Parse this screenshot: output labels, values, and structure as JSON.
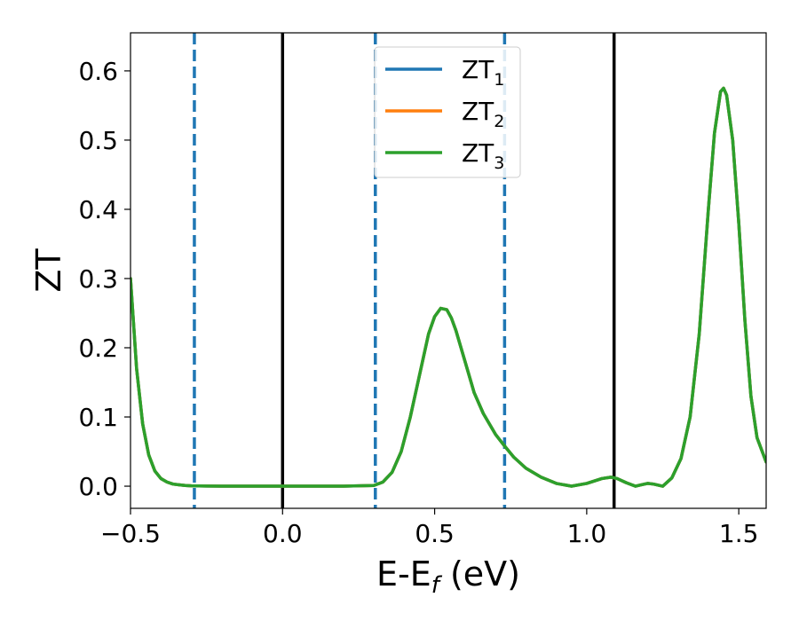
{
  "chart_data": {
    "type": "line",
    "title": "",
    "xlabel": "E-E",
    "xlabel_sub": "f",
    "xlabel_unit": " (eV)",
    "ylabel": "ZT",
    "xlim": [
      -0.5,
      1.59
    ],
    "ylim": [
      -0.032,
      0.655
    ],
    "x_ticks": [
      -0.5,
      0.0,
      0.5,
      1.0,
      1.5
    ],
    "x_tick_labels": [
      "−0.5",
      "0.0",
      "0.5",
      "1.0",
      "1.5"
    ],
    "y_ticks": [
      0.0,
      0.1,
      0.2,
      0.3,
      0.4,
      0.5,
      0.6
    ],
    "y_tick_labels": [
      "0.0",
      "0.1",
      "0.2",
      "0.3",
      "0.4",
      "0.5",
      "0.6"
    ],
    "grid": false,
    "legend_position": "top-center",
    "vlines": [
      {
        "x": -0.29,
        "style": "dashed",
        "color": "#1f77b4"
      },
      {
        "x": 0.0,
        "style": "solid",
        "color": "#000000"
      },
      {
        "x": 0.305,
        "style": "dashed",
        "color": "#1f77b4"
      },
      {
        "x": 0.73,
        "style": "dashed",
        "color": "#1f77b4"
      },
      {
        "x": 1.09,
        "style": "solid",
        "color": "#000000"
      }
    ],
    "x": [
      -0.5,
      -0.48,
      -0.46,
      -0.44,
      -0.42,
      -0.4,
      -0.38,
      -0.36,
      -0.34,
      -0.32,
      -0.3,
      -0.25,
      -0.2,
      -0.1,
      0.0,
      0.1,
      0.2,
      0.3,
      0.33,
      0.36,
      0.39,
      0.42,
      0.45,
      0.48,
      0.5,
      0.52,
      0.54,
      0.555,
      0.57,
      0.59,
      0.61,
      0.63,
      0.66,
      0.7,
      0.73,
      0.76,
      0.8,
      0.85,
      0.9,
      0.95,
      1.0,
      1.05,
      1.08,
      1.1,
      1.13,
      1.16,
      1.18,
      1.2,
      1.22,
      1.25,
      1.28,
      1.31,
      1.34,
      1.37,
      1.4,
      1.42,
      1.44,
      1.45,
      1.46,
      1.48,
      1.5,
      1.52,
      1.54,
      1.56,
      1.59
    ],
    "series": [
      {
        "name": "ZT",
        "name_sub": "1",
        "color": "#1f77b4",
        "values": [
          0.3,
          0.17,
          0.09,
          0.045,
          0.022,
          0.011,
          0.006,
          0.003,
          0.002,
          0.001,
          0.0005,
          0.0002,
          0.0001,
          0.0,
          0.0,
          0.0,
          0.0,
          0.001,
          0.006,
          0.02,
          0.05,
          0.1,
          0.16,
          0.22,
          0.245,
          0.257,
          0.255,
          0.243,
          0.225,
          0.195,
          0.165,
          0.135,
          0.105,
          0.075,
          0.058,
          0.042,
          0.026,
          0.013,
          0.004,
          0.0,
          0.004,
          0.011,
          0.013,
          0.011,
          0.005,
          0.0,
          0.002,
          0.004,
          0.003,
          0.0,
          0.012,
          0.04,
          0.1,
          0.22,
          0.4,
          0.51,
          0.57,
          0.575,
          0.565,
          0.5,
          0.38,
          0.24,
          0.13,
          0.07,
          0.035
        ]
      },
      {
        "name": "ZT",
        "name_sub": "2",
        "color": "#ff7f0e",
        "values": [
          0.3,
          0.17,
          0.09,
          0.045,
          0.022,
          0.011,
          0.006,
          0.003,
          0.002,
          0.001,
          0.0005,
          0.0002,
          0.0001,
          0.0,
          0.0,
          0.0,
          0.0,
          0.001,
          0.006,
          0.02,
          0.05,
          0.1,
          0.16,
          0.22,
          0.245,
          0.257,
          0.255,
          0.243,
          0.225,
          0.195,
          0.165,
          0.135,
          0.105,
          0.075,
          0.058,
          0.042,
          0.026,
          0.013,
          0.004,
          0.0,
          0.004,
          0.011,
          0.013,
          0.011,
          0.005,
          0.0,
          0.002,
          0.004,
          0.003,
          0.0,
          0.012,
          0.04,
          0.1,
          0.22,
          0.4,
          0.51,
          0.57,
          0.575,
          0.565,
          0.5,
          0.38,
          0.24,
          0.13,
          0.07,
          0.035
        ]
      },
      {
        "name": "ZT",
        "name_sub": "3",
        "color": "#2ca02c",
        "values": [
          0.3,
          0.17,
          0.09,
          0.045,
          0.022,
          0.011,
          0.006,
          0.003,
          0.002,
          0.001,
          0.0005,
          0.0002,
          0.0001,
          0.0,
          0.0,
          0.0,
          0.0,
          0.001,
          0.006,
          0.02,
          0.05,
          0.1,
          0.16,
          0.22,
          0.245,
          0.257,
          0.255,
          0.243,
          0.225,
          0.195,
          0.165,
          0.135,
          0.105,
          0.075,
          0.058,
          0.042,
          0.026,
          0.013,
          0.004,
          0.0,
          0.004,
          0.011,
          0.013,
          0.011,
          0.005,
          0.0,
          0.002,
          0.004,
          0.003,
          0.0,
          0.012,
          0.04,
          0.1,
          0.22,
          0.4,
          0.51,
          0.57,
          0.575,
          0.565,
          0.5,
          0.38,
          0.24,
          0.13,
          0.07,
          0.035
        ]
      }
    ]
  }
}
